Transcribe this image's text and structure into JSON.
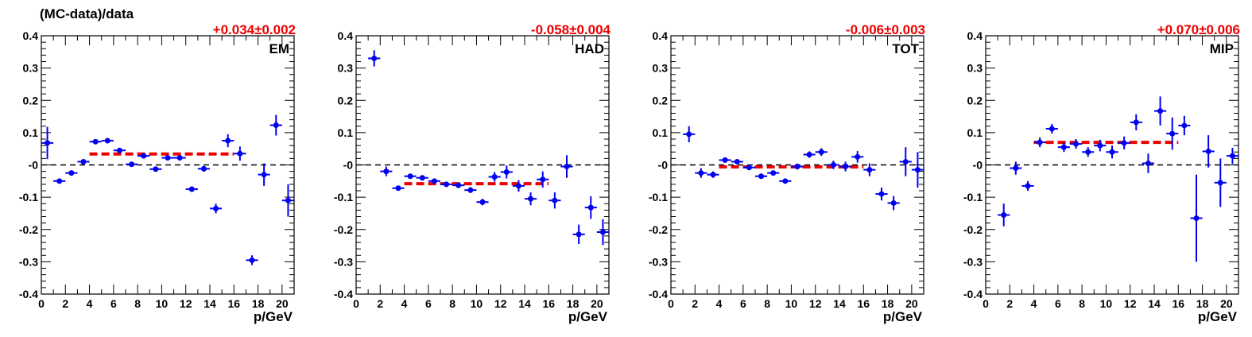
{
  "figure": {
    "ylabel": "(MC-data)/data"
  },
  "chart_data": [
    {
      "type": "scatter",
      "panel_label": "EM",
      "fit_label": "+0.034±0.002",
      "fit_value": 0.034,
      "fit_range": [
        4,
        16
      ],
      "xlabel": "p/GeV",
      "xlim": [
        0,
        21
      ],
      "ylim": [
        -0.4,
        0.4
      ],
      "xticks": [
        0,
        2,
        4,
        6,
        8,
        10,
        12,
        14,
        16,
        18,
        20
      ],
      "yticks": [
        0.4,
        0.3,
        0.2,
        0.1,
        0,
        -0.1,
        -0.2,
        -0.3,
        -0.4
      ],
      "ytick_labels": [
        "0.4",
        "0.3",
        "0.2",
        "0.1",
        "-0",
        "-0.1",
        "-0.2",
        "-0.3",
        "-0.4"
      ],
      "points": [
        {
          "x": 0.5,
          "y": 0.068,
          "err": 0.05
        },
        {
          "x": 1.5,
          "y": -0.05,
          "err": 0.008
        },
        {
          "x": 2.5,
          "y": -0.025,
          "err": 0.006
        },
        {
          "x": 3.5,
          "y": 0.01,
          "err": 0.006
        },
        {
          "x": 4.5,
          "y": 0.072,
          "err": 0.005
        },
        {
          "x": 5.5,
          "y": 0.075,
          "err": 0.005
        },
        {
          "x": 6.5,
          "y": 0.045,
          "err": 0.005
        },
        {
          "x": 7.5,
          "y": 0.002,
          "err": 0.005
        },
        {
          "x": 8.5,
          "y": 0.028,
          "err": 0.005
        },
        {
          "x": 9.5,
          "y": -0.013,
          "err": 0.006
        },
        {
          "x": 10.5,
          "y": 0.022,
          "err": 0.006
        },
        {
          "x": 11.5,
          "y": 0.022,
          "err": 0.007
        },
        {
          "x": 12.5,
          "y": -0.075,
          "err": 0.008
        },
        {
          "x": 13.5,
          "y": -0.012,
          "err": 0.009
        },
        {
          "x": 14.5,
          "y": -0.135,
          "err": 0.015
        },
        {
          "x": 15.5,
          "y": 0.075,
          "err": 0.02
        },
        {
          "x": 16.5,
          "y": 0.035,
          "err": 0.022
        },
        {
          "x": 17.5,
          "y": -0.295,
          "err": 0.015
        },
        {
          "x": 18.5,
          "y": -0.03,
          "err": 0.035
        },
        {
          "x": 19.5,
          "y": 0.123,
          "err": 0.032
        },
        {
          "x": 20.5,
          "y": -0.11,
          "err": 0.05
        }
      ]
    },
    {
      "type": "scatter",
      "panel_label": "HAD",
      "fit_label": "-0.058±0.004",
      "fit_value": -0.058,
      "fit_range": [
        4,
        16
      ],
      "xlabel": "p/GeV",
      "xlim": [
        0,
        21
      ],
      "ylim": [
        -0.4,
        0.4
      ],
      "xticks": [
        0,
        2,
        4,
        6,
        8,
        10,
        12,
        14,
        16,
        18,
        20
      ],
      "yticks": [
        0.4,
        0.3,
        0.2,
        0.1,
        0,
        -0.1,
        -0.2,
        -0.3,
        -0.4
      ],
      "ytick_labels": [
        "0.4",
        "0.3",
        "0.2",
        "0.1",
        "-0",
        "-0.1",
        "-0.2",
        "-0.3",
        "-0.4"
      ],
      "points": [
        {
          "x": 1.5,
          "y": 0.33,
          "err": 0.025
        },
        {
          "x": 2.5,
          "y": -0.02,
          "err": 0.015
        },
        {
          "x": 3.5,
          "y": -0.072,
          "err": 0.008
        },
        {
          "x": 4.5,
          "y": -0.035,
          "err": 0.007
        },
        {
          "x": 5.5,
          "y": -0.04,
          "err": 0.007
        },
        {
          "x": 6.5,
          "y": -0.05,
          "err": 0.007
        },
        {
          "x": 7.5,
          "y": -0.06,
          "err": 0.008
        },
        {
          "x": 8.5,
          "y": -0.063,
          "err": 0.008
        },
        {
          "x": 9.5,
          "y": -0.078,
          "err": 0.009
        },
        {
          "x": 10.5,
          "y": -0.115,
          "err": 0.01
        },
        {
          "x": 11.5,
          "y": -0.037,
          "err": 0.015
        },
        {
          "x": 12.5,
          "y": -0.022,
          "err": 0.02
        },
        {
          "x": 13.5,
          "y": -0.065,
          "err": 0.018
        },
        {
          "x": 14.5,
          "y": -0.105,
          "err": 0.02
        },
        {
          "x": 15.5,
          "y": -0.045,
          "err": 0.025
        },
        {
          "x": 16.5,
          "y": -0.11,
          "err": 0.025
        },
        {
          "x": 17.5,
          "y": -0.005,
          "err": 0.035
        },
        {
          "x": 18.5,
          "y": -0.215,
          "err": 0.03
        },
        {
          "x": 19.5,
          "y": -0.132,
          "err": 0.035
        },
        {
          "x": 20.5,
          "y": -0.208,
          "err": 0.04
        }
      ]
    },
    {
      "type": "scatter",
      "panel_label": "TOT",
      "fit_label": "-0.006±0.003",
      "fit_value": -0.006,
      "fit_range": [
        4,
        16
      ],
      "xlabel": "p/GeV",
      "xlim": [
        0,
        21
      ],
      "ylim": [
        -0.4,
        0.4
      ],
      "xticks": [
        0,
        2,
        4,
        6,
        8,
        10,
        12,
        14,
        16,
        18,
        20
      ],
      "yticks": [
        0.4,
        0.3,
        0.2,
        0.1,
        0,
        -0.1,
        -0.2,
        -0.3,
        -0.4
      ],
      "ytick_labels": [
        "0.4",
        "0.3",
        "0.2",
        "0.1",
        "-0",
        "-0.1",
        "-0.2",
        "-0.3",
        "-0.4"
      ],
      "points": [
        {
          "x": 1.5,
          "y": 0.095,
          "err": 0.025
        },
        {
          "x": 2.5,
          "y": -0.025,
          "err": 0.015
        },
        {
          "x": 3.5,
          "y": -0.03,
          "err": 0.01
        },
        {
          "x": 4.5,
          "y": 0.015,
          "err": 0.008
        },
        {
          "x": 5.5,
          "y": 0.01,
          "err": 0.007
        },
        {
          "x": 6.5,
          "y": -0.008,
          "err": 0.006
        },
        {
          "x": 7.5,
          "y": -0.035,
          "err": 0.006
        },
        {
          "x": 8.5,
          "y": -0.025,
          "err": 0.007
        },
        {
          "x": 9.5,
          "y": -0.05,
          "err": 0.008
        },
        {
          "x": 10.5,
          "y": -0.005,
          "err": 0.009
        },
        {
          "x": 11.5,
          "y": 0.032,
          "err": 0.01
        },
        {
          "x": 12.5,
          "y": 0.04,
          "err": 0.012
        },
        {
          "x": 13.5,
          "y": 0.0,
          "err": 0.013
        },
        {
          "x": 14.5,
          "y": -0.005,
          "err": 0.015
        },
        {
          "x": 15.5,
          "y": 0.025,
          "err": 0.018
        },
        {
          "x": 16.5,
          "y": -0.015,
          "err": 0.02
        },
        {
          "x": 17.5,
          "y": -0.09,
          "err": 0.02
        },
        {
          "x": 18.5,
          "y": -0.118,
          "err": 0.022
        },
        {
          "x": 19.5,
          "y": 0.01,
          "err": 0.045
        },
        {
          "x": 20.5,
          "y": -0.015,
          "err": 0.055
        }
      ]
    },
    {
      "type": "scatter",
      "panel_label": "MIP",
      "fit_label": "+0.070±0.006",
      "fit_value": 0.07,
      "fit_range": [
        4,
        16
      ],
      "xlabel": "p/GeV",
      "xlim": [
        0,
        21
      ],
      "ylim": [
        -0.4,
        0.4
      ],
      "xticks": [
        0,
        2,
        4,
        6,
        8,
        10,
        12,
        14,
        16,
        18,
        20
      ],
      "yticks": [
        0.4,
        0.3,
        0.2,
        0.1,
        0,
        -0.1,
        -0.2,
        -0.3,
        -0.4
      ],
      "ytick_labels": [
        "0.4",
        "0.3",
        "0.2",
        "0.1",
        "-0",
        "-0.1",
        "-0.2",
        "-0.3",
        "-0.4"
      ],
      "points": [
        {
          "x": 1.5,
          "y": -0.155,
          "err": 0.035
        },
        {
          "x": 2.5,
          "y": -0.01,
          "err": 0.02
        },
        {
          "x": 3.5,
          "y": -0.065,
          "err": 0.015
        },
        {
          "x": 4.5,
          "y": 0.07,
          "err": 0.015
        },
        {
          "x": 5.5,
          "y": 0.112,
          "err": 0.015
        },
        {
          "x": 6.5,
          "y": 0.055,
          "err": 0.015
        },
        {
          "x": 7.5,
          "y": 0.065,
          "err": 0.015
        },
        {
          "x": 8.5,
          "y": 0.04,
          "err": 0.015
        },
        {
          "x": 9.5,
          "y": 0.06,
          "err": 0.018
        },
        {
          "x": 10.5,
          "y": 0.04,
          "err": 0.02
        },
        {
          "x": 11.5,
          "y": 0.068,
          "err": 0.02
        },
        {
          "x": 12.5,
          "y": 0.132,
          "err": 0.025
        },
        {
          "x": 13.5,
          "y": 0.005,
          "err": 0.03
        },
        {
          "x": 14.5,
          "y": 0.167,
          "err": 0.045
        },
        {
          "x": 15.5,
          "y": 0.097,
          "err": 0.05
        },
        {
          "x": 16.5,
          "y": 0.122,
          "err": 0.03
        },
        {
          "x": 17.5,
          "y": -0.165,
          "err": 0.135
        },
        {
          "x": 18.5,
          "y": 0.042,
          "err": 0.05
        },
        {
          "x": 19.5,
          "y": -0.055,
          "err": 0.075
        },
        {
          "x": 20.5,
          "y": 0.028,
          "err": 0.025
        }
      ]
    }
  ],
  "colors": {
    "marker": "#0000ee",
    "fit": "#ee0000",
    "fit_label": "#ee0000",
    "axis": "#000000",
    "zero_line": "#000000"
  }
}
